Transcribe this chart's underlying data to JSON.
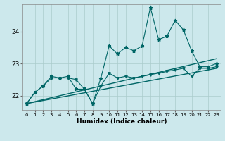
{
  "title": "",
  "xlabel": "Humidex (Indice chaleur)",
  "bg_color": "#cce8ec",
  "grid_color": "#aacccc",
  "line_color": "#006666",
  "xlim": [
    -0.5,
    23.5
  ],
  "ylim": [
    21.55,
    24.85
  ],
  "yticks": [
    22,
    23,
    24
  ],
  "xticks": [
    0,
    1,
    2,
    3,
    4,
    5,
    6,
    7,
    8,
    9,
    10,
    11,
    12,
    13,
    14,
    15,
    16,
    17,
    18,
    19,
    20,
    21,
    22,
    23
  ],
  "upper_x": [
    0,
    1,
    2,
    3,
    4,
    5,
    6,
    7,
    8,
    9,
    10,
    11,
    12,
    13,
    14,
    15,
    16,
    17,
    18,
    19,
    20,
    21,
    22,
    23
  ],
  "upper_y": [
    21.75,
    22.1,
    22.3,
    22.6,
    22.55,
    22.6,
    22.2,
    22.2,
    21.75,
    22.55,
    23.55,
    23.3,
    23.5,
    23.4,
    23.55,
    24.75,
    23.75,
    23.85,
    24.35,
    24.05,
    23.4,
    22.9,
    22.9,
    23.0
  ],
  "lower_x": [
    0,
    1,
    2,
    3,
    4,
    5,
    6,
    7,
    8,
    9,
    10,
    11,
    12,
    13,
    14,
    15,
    16,
    17,
    18,
    19,
    20,
    21,
    22,
    23
  ],
  "lower_y": [
    21.75,
    22.1,
    22.3,
    22.55,
    22.55,
    22.55,
    22.5,
    22.2,
    21.75,
    22.3,
    22.7,
    22.55,
    22.6,
    22.55,
    22.6,
    22.65,
    22.7,
    22.75,
    22.8,
    22.85,
    22.6,
    22.85,
    22.85,
    22.9
  ],
  "trend1_x": [
    0,
    23
  ],
  "trend1_y": [
    21.75,
    23.15
  ],
  "trend2_x": [
    0,
    23
  ],
  "trend2_y": [
    21.75,
    22.85
  ]
}
